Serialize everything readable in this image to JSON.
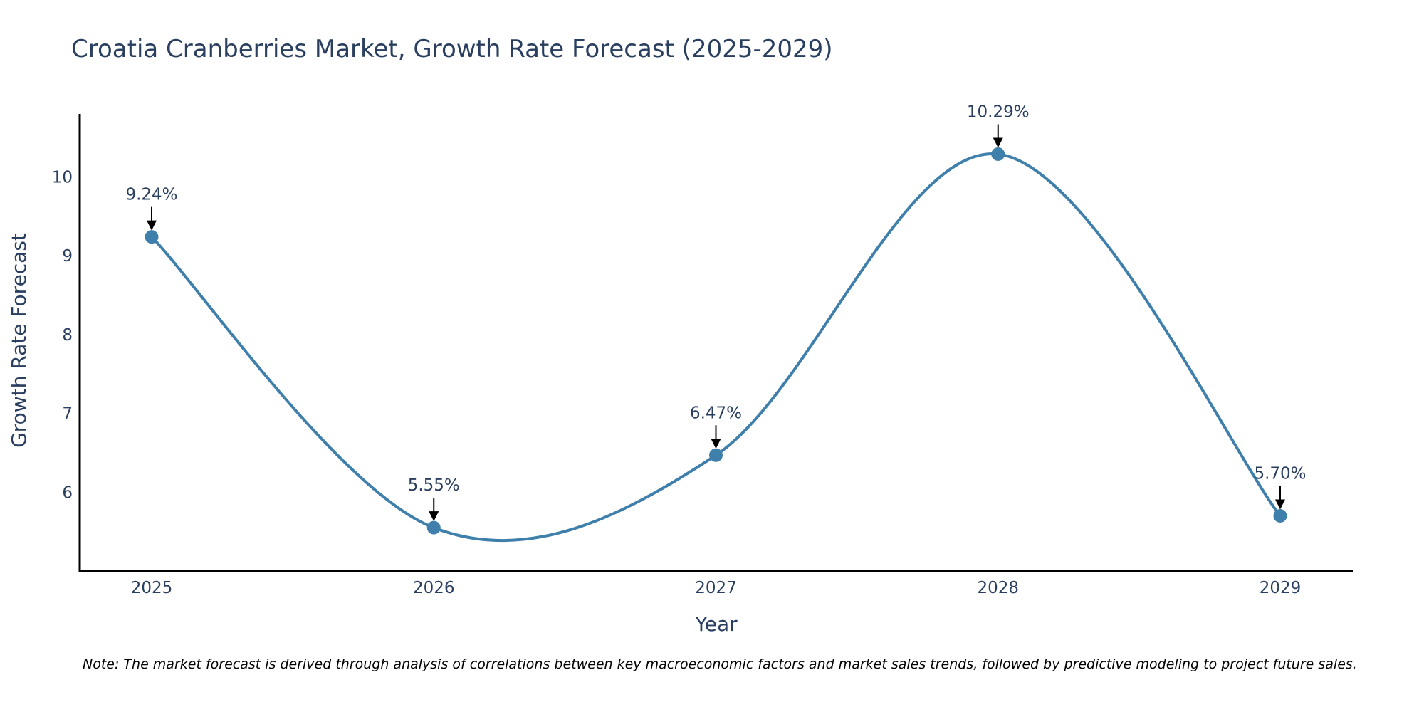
{
  "chart_data": {
    "type": "line",
    "title": "Croatia Cranberries Market, Growth Rate Forecast (2025-2029)",
    "xlabel": "Year",
    "ylabel": "Growth Rate Forecast",
    "categories": [
      "2025",
      "2026",
      "2027",
      "2028",
      "2029"
    ],
    "values": [
      9.24,
      5.55,
      6.47,
      10.29,
      5.7
    ],
    "labels": [
      "9.24%",
      "5.55%",
      "6.47%",
      "10.29%",
      "5.70%"
    ],
    "yticks": [
      6,
      7,
      8,
      9,
      10
    ],
    "ytick_labels": [
      "6",
      "7",
      "8",
      "9",
      "10"
    ],
    "ylim": [
      5.0,
      10.8
    ],
    "grid": false,
    "line_shape": "spline",
    "colors": {
      "line": "#3f7fab",
      "marker": "#3f7fab",
      "arrow": "#000000",
      "axis": "#000000"
    },
    "note": "Note: The market forecast is derived through analysis of correlations between key macroeconomic factors and market sales trends, followed by predictive modeling to project future sales."
  }
}
